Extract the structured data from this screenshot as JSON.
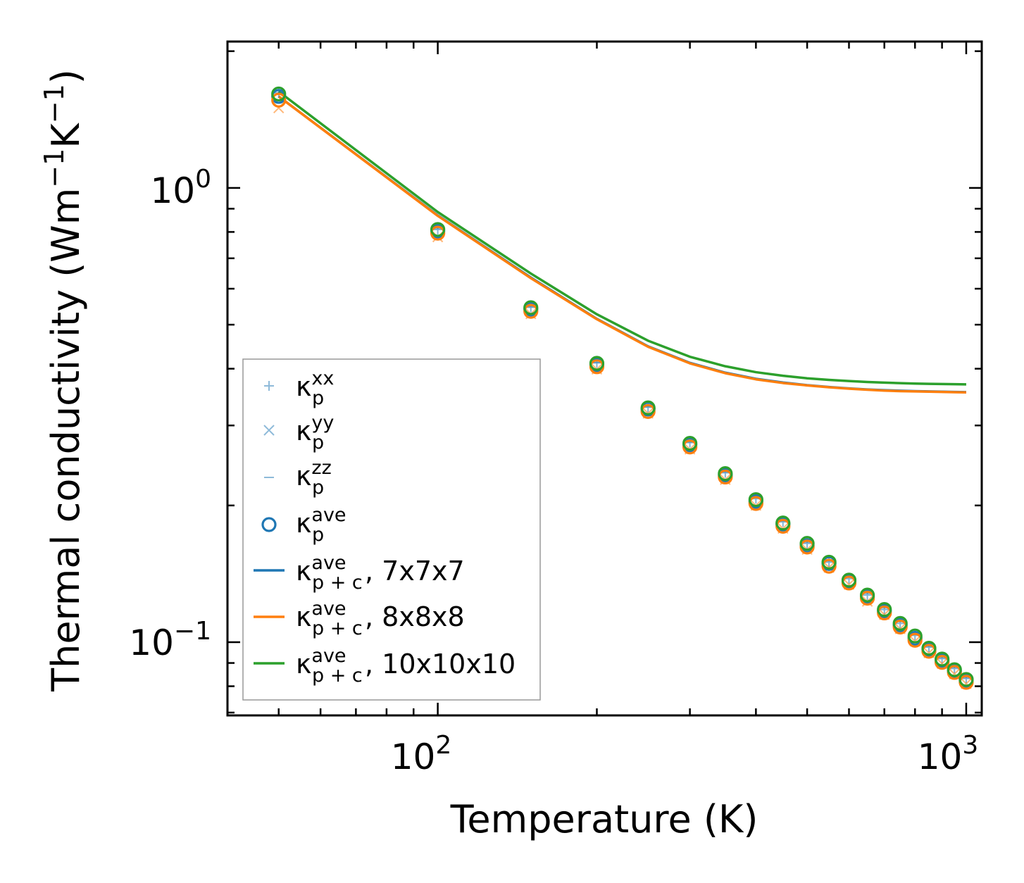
{
  "chart_data": {
    "type": "scatter",
    "title": "",
    "xlabel": "Temperature (K)",
    "ylabel": {
      "base": "Thermal conductivity (Wm",
      "exp1": "−1",
      "mid": "K",
      "exp2": "−1",
      "end": ")"
    },
    "xscale": "log",
    "yscale": "log",
    "xlim": [
      40,
      1070
    ],
    "ylim": [
      0.069,
      2.1
    ],
    "xticks": [
      {
        "base": "10",
        "exp": "2",
        "value": 100
      },
      {
        "base": "10",
        "exp": "3",
        "value": 1000
      }
    ],
    "yticks": [
      {
        "base": "10",
        "exp": "0",
        "value": 1
      },
      {
        "base": "10",
        "exp": "−1",
        "value": 0.1
      }
    ],
    "temperatures": [
      50,
      100,
      150,
      200,
      250,
      300,
      350,
      400,
      450,
      500,
      550,
      600,
      650,
      700,
      750,
      800,
      850,
      900,
      950,
      1000
    ],
    "point_series": [
      {
        "name": "kappa_p_xx",
        "marker": "plus",
        "color": "#1f77b4",
        "values": [
          1.62,
          0.81,
          0.546,
          0.412,
          0.329,
          0.275,
          0.236,
          0.207,
          0.184,
          0.165,
          0.15,
          0.138,
          0.127,
          0.118,
          0.11,
          0.1035,
          0.0975,
          0.092,
          0.0875,
          0.0832
        ]
      },
      {
        "name": "kappa_p_yy",
        "marker": "x",
        "color": "#1f77b4",
        "values": [
          1.5,
          0.78,
          0.528,
          0.399,
          0.319,
          0.266,
          0.228,
          0.2,
          0.178,
          0.16,
          0.146,
          0.134,
          0.123,
          0.115,
          0.107,
          0.1005,
          0.0947,
          0.0897,
          0.0851,
          0.081
        ]
      },
      {
        "name": "kappa_p_zz",
        "marker": "dash",
        "color": "#1f77b4",
        "values": [
          1.64,
          0.815,
          0.548,
          0.413,
          0.33,
          0.276,
          0.237,
          0.208,
          0.185,
          0.166,
          0.151,
          0.139,
          0.128,
          0.119,
          0.111,
          0.104,
          0.098,
          0.0925,
          0.088,
          0.0836
        ]
      },
      {
        "name": "kappa_p_ave 7x7x7",
        "marker": "circle",
        "color": "#1f77b4",
        "values": [
          1.59,
          0.803,
          0.541,
          0.408,
          0.326,
          0.272,
          0.233,
          0.204,
          0.182,
          0.163,
          0.149,
          0.136,
          0.126,
          0.117,
          0.109,
          0.102,
          0.0962,
          0.091,
          0.0864,
          0.0822
        ]
      },
      {
        "name": "kappa_p_ave 8x8x8",
        "marker": "circle",
        "color": "#ff7f0e",
        "values": [
          1.56,
          0.795,
          0.535,
          0.404,
          0.322,
          0.269,
          0.231,
          0.202,
          0.18,
          0.162,
          0.147,
          0.135,
          0.125,
          0.116,
          0.108,
          0.101,
          0.0955,
          0.0903,
          0.0858,
          0.0816
        ]
      },
      {
        "name": "kappa_p_ave 10x10x10",
        "marker": "circle",
        "color": "#2ca02c",
        "values": [
          1.61,
          0.81,
          0.545,
          0.411,
          0.328,
          0.274,
          0.235,
          0.206,
          0.183,
          0.165,
          0.15,
          0.137,
          0.127,
          0.118,
          0.11,
          0.1032,
          0.097,
          0.0918,
          0.087,
          0.0828
        ]
      }
    ],
    "line_series": [
      {
        "name": "kappa_p+c_ave 7x7x7",
        "color": "#1f77b4",
        "values": [
          1.59,
          0.87,
          0.635,
          0.515,
          0.448,
          0.412,
          0.392,
          0.38,
          0.373,
          0.368,
          0.3645,
          0.362,
          0.36,
          0.3588,
          0.3578,
          0.357,
          0.3565,
          0.356,
          0.3556,
          0.3552
        ]
      },
      {
        "name": "kappa_p+c_ave 8x8x8",
        "color": "#ff7f0e",
        "values": [
          1.59,
          0.868,
          0.633,
          0.514,
          0.447,
          0.411,
          0.391,
          0.379,
          0.372,
          0.3675,
          0.364,
          0.3615,
          0.3595,
          0.358,
          0.357,
          0.3565,
          0.356,
          0.3555,
          0.355,
          0.3548
        ]
      },
      {
        "name": "kappa_p+c_ave 10x10x10",
        "color": "#2ca02c",
        "values": [
          1.63,
          0.885,
          0.648,
          0.527,
          0.461,
          0.425,
          0.405,
          0.393,
          0.386,
          0.381,
          0.378,
          0.3757,
          0.374,
          0.3728,
          0.3718,
          0.371,
          0.3705,
          0.3701,
          0.3698,
          0.3695
        ]
      }
    ],
    "legend": {
      "placement": "lower-left",
      "entries": [
        {
          "symbol": "plus",
          "color": "#1f77b4",
          "kappa": "κ",
          "sub": "p",
          "sup": "xx",
          "suffix": ""
        },
        {
          "symbol": "x",
          "color": "#1f77b4",
          "kappa": "κ",
          "sub": "p",
          "sup": "yy",
          "suffix": ""
        },
        {
          "symbol": "dash",
          "color": "#1f77b4",
          "kappa": "κ",
          "sub": "p",
          "sup": "zz",
          "suffix": ""
        },
        {
          "symbol": "circle",
          "color": "#1f77b4",
          "kappa": "κ",
          "sub": "p",
          "sup": "ave",
          "suffix": ""
        },
        {
          "symbol": "line",
          "color": "#1f77b4",
          "kappa": "κ",
          "sub": "p + c",
          "sup": "ave",
          "suffix": ", 7x7x7"
        },
        {
          "symbol": "line",
          "color": "#ff7f0e",
          "kappa": "κ",
          "sub": "p + c",
          "sup": "ave",
          "suffix": ", 8x8x8"
        },
        {
          "symbol": "line",
          "color": "#2ca02c",
          "kappa": "κ",
          "sub": "p + c",
          "sup": "ave",
          "suffix": ", 10x10x10"
        }
      ]
    }
  }
}
